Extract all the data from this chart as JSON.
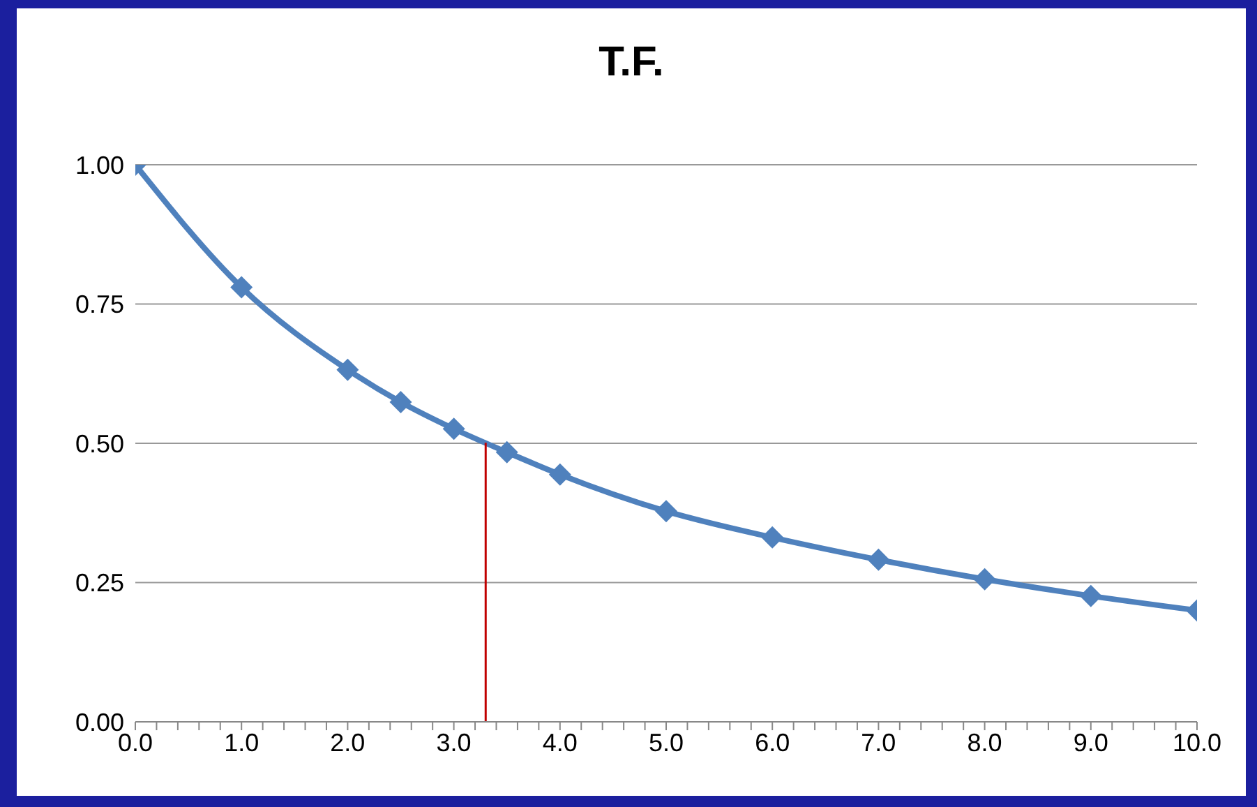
{
  "chart_data": {
    "type": "line",
    "title": "T.F.",
    "x": [
      0,
      1,
      2,
      2.5,
      3,
      3.5,
      4,
      5,
      6,
      7,
      8,
      9,
      10
    ],
    "series": [
      {
        "color": "#4f81bd",
        "values": [
          1.0,
          0.78,
          0.632,
          0.574,
          0.526,
          0.484,
          0.444,
          0.378,
          0.331,
          0.291,
          0.256,
          0.226,
          0.2
        ]
      }
    ],
    "xlim": [
      0,
      10
    ],
    "xticks": [
      {
        "value": 0,
        "label": "0.0"
      },
      {
        "value": 0.2,
        "label": null
      },
      {
        "value": 0.4,
        "label": null
      },
      {
        "value": 0.6,
        "label": null
      },
      {
        "value": 0.8,
        "label": null
      },
      {
        "value": 1,
        "label": "1.0"
      },
      {
        "value": 1.2,
        "label": null
      },
      {
        "value": 1.4,
        "label": null
      },
      {
        "value": 1.6,
        "label": null
      },
      {
        "value": 1.8,
        "label": null
      },
      {
        "value": 2,
        "label": "2.0"
      },
      {
        "value": 2.2,
        "label": null
      },
      {
        "value": 2.4,
        "label": null
      },
      {
        "value": 2.6,
        "label": null
      },
      {
        "value": 2.8,
        "label": null
      },
      {
        "value": 3,
        "label": "3.0"
      },
      {
        "value": 3.2,
        "label": null
      },
      {
        "value": 3.4,
        "label": null
      },
      {
        "value": 3.6,
        "label": null
      },
      {
        "value": 3.8,
        "label": null
      },
      {
        "value": 4,
        "label": "4.0"
      },
      {
        "value": 4.2,
        "label": null
      },
      {
        "value": 4.4,
        "label": null
      },
      {
        "value": 4.6,
        "label": null
      },
      {
        "value": 4.8,
        "label": null
      },
      {
        "value": 5,
        "label": "5.0"
      },
      {
        "value": 5.2,
        "label": null
      },
      {
        "value": 5.4,
        "label": null
      },
      {
        "value": 5.6,
        "label": null
      },
      {
        "value": 5.8,
        "label": null
      },
      {
        "value": 6,
        "label": "6.0"
      },
      {
        "value": 6.2,
        "label": null
      },
      {
        "value": 6.4,
        "label": null
      },
      {
        "value": 6.6,
        "label": null
      },
      {
        "value": 6.8,
        "label": null
      },
      {
        "value": 7,
        "label": "7.0"
      },
      {
        "value": 7.2,
        "label": null
      },
      {
        "value": 7.4,
        "label": null
      },
      {
        "value": 7.6,
        "label": null
      },
      {
        "value": 7.8,
        "label": null
      },
      {
        "value": 8,
        "label": "8.0"
      },
      {
        "value": 8.2,
        "label": null
      },
      {
        "value": 8.4,
        "label": null
      },
      {
        "value": 8.6,
        "label": null
      },
      {
        "value": 8.8,
        "label": null
      },
      {
        "value": 9,
        "label": "9.0"
      },
      {
        "value": 9.2,
        "label": null
      },
      {
        "value": 9.4,
        "label": null
      },
      {
        "value": 9.6,
        "label": null
      },
      {
        "value": 9.8,
        "label": null
      },
      {
        "value": 10,
        "label": "10.0"
      }
    ],
    "ylim": [
      0,
      1
    ],
    "yticks": [
      {
        "value": 0,
        "label": "0.00"
      },
      {
        "value": 0.25,
        "label": "0.25"
      },
      {
        "value": 0.5,
        "label": "0.50"
      },
      {
        "value": 0.75,
        "label": "0.75"
      },
      {
        "value": 1,
        "label": "1.00"
      }
    ],
    "grid": "y",
    "marker": "diamond",
    "line_style": "solid",
    "legend": false,
    "ref_lines": [
      {
        "axis": "x",
        "value": 3.3,
        "color": "#c00000"
      }
    ]
  }
}
